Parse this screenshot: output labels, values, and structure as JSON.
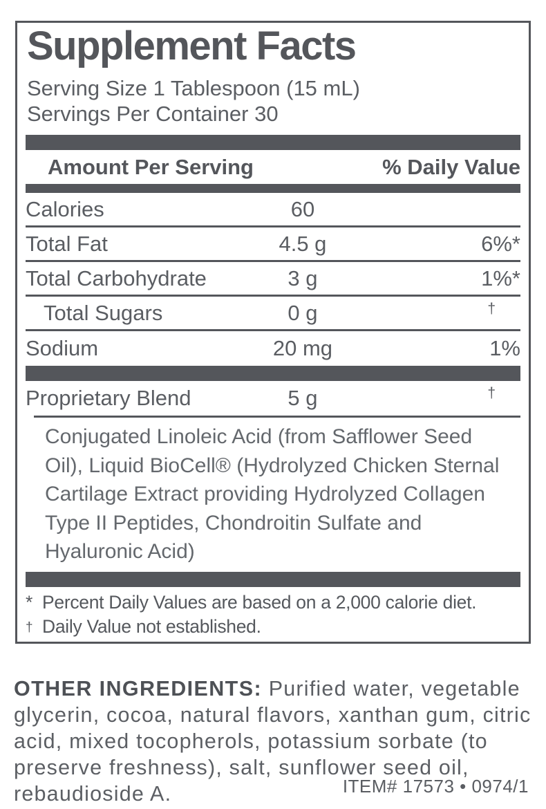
{
  "panel": {
    "title": "Supplement Facts",
    "serving_size": "Serving Size 1 Tablespoon (15 mL)",
    "servings_per_container": "Servings Per Container 30",
    "header": {
      "amount_col": "Amount Per Serving",
      "dv_col": "% Daily Value"
    },
    "rows": [
      {
        "label": "Calories",
        "amount": "60",
        "dv": ""
      },
      {
        "label": "Total Fat",
        "amount": "4.5 g",
        "dv": "6%*"
      },
      {
        "label": "Total Carbohydrate",
        "amount": "3 g",
        "dv": "1%*"
      },
      {
        "label": "Total Sugars",
        "amount": "0 g",
        "dv": "†"
      },
      {
        "label": "Sodium",
        "amount": "20 mg",
        "dv": "1%"
      },
      {
        "label": "Proprietary Blend",
        "amount": "5 g",
        "dv": "†"
      }
    ],
    "proprietary_description": "Conjugated Linoleic Acid (from Safflower Seed Oil), Liquid BioCell® (Hydrolyzed Chicken Sternal Cartilage Extract providing Hydrolyzed Collagen Type II Peptides, Chondroitin Sulfate and Hyaluronic Acid)",
    "footnotes": [
      {
        "symbol": "*",
        "text": "Percent Daily Values are based on a 2,000 calorie diet."
      },
      {
        "symbol": "†",
        "text": "Daily Value not established."
      }
    ]
  },
  "other_ingredients": {
    "heading": "OTHER INGREDIENTS:",
    "text": "Purified water, vegetable glycerin, cocoa, natural flavors, xanthan gum, citric acid, mixed tocopherols, potassium sorbate (to preserve freshness), salt, sunflower seed oil, rebaudioside A."
  },
  "footer": {
    "item_code": "ITEM# 17573 • 0974/1"
  },
  "colors": {
    "slate": "#54565B",
    "body_text": "#5A5D62",
    "description_text": "#64686D"
  }
}
